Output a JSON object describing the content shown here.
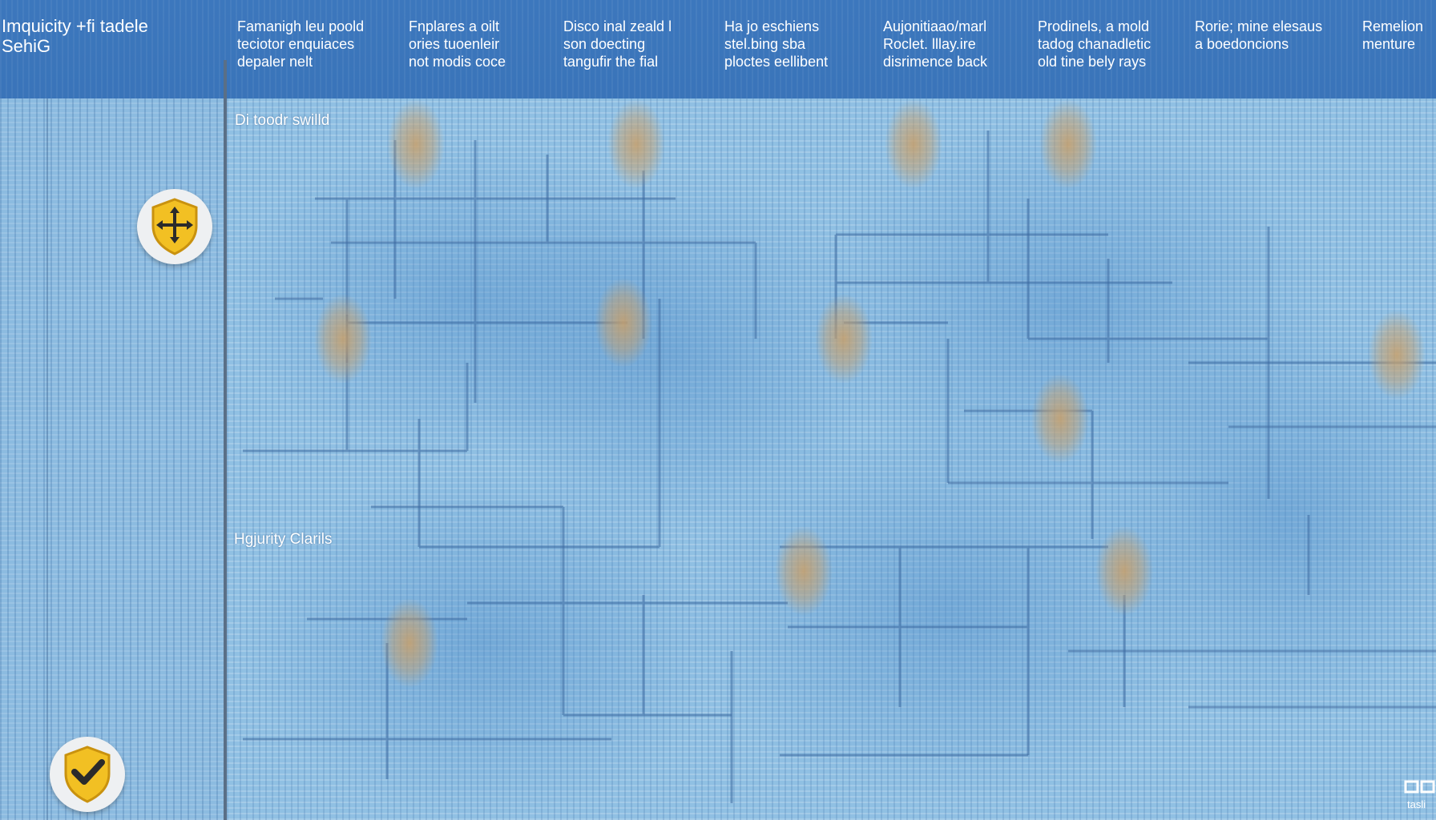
{
  "header": {
    "app_title": "Imquicity +fi tadele\nSehiG",
    "columns": [
      "Famanigh leu poold\nteciotor enquiaces\ndepaler nelt",
      "Fnplares a oilt\nories tuoenleir\nnot modis coce",
      "Disco inal zeald l\nson doecting\ntangufir the fial",
      "Ha jo eschiens\nstel.bing sba\nploctes eellibent",
      "Aujonitiaao/marl\nRoclet. lllay.ire\ndisrimence back",
      "Prodinels, a mold\ntadog chanadletic\nold tine bely rays",
      "Rorie; mine elesaus\na boedoncions",
      "Remelion\nmenture"
    ]
  },
  "map": {
    "label_top": "Di toodr swilld",
    "label_bottom": "Hgjurity Clarils"
  },
  "markers": {
    "upper_icon": "move-arrows-shield-icon",
    "lower_icon": "checkmark-shield-icon"
  },
  "corner": {
    "text": "tasli"
  },
  "colors": {
    "header": "#3a74b9",
    "map": "#90c0e3",
    "shield": "#f2c023",
    "hotspot": "#c9a06a",
    "grid_line": "#3d6aa0"
  }
}
